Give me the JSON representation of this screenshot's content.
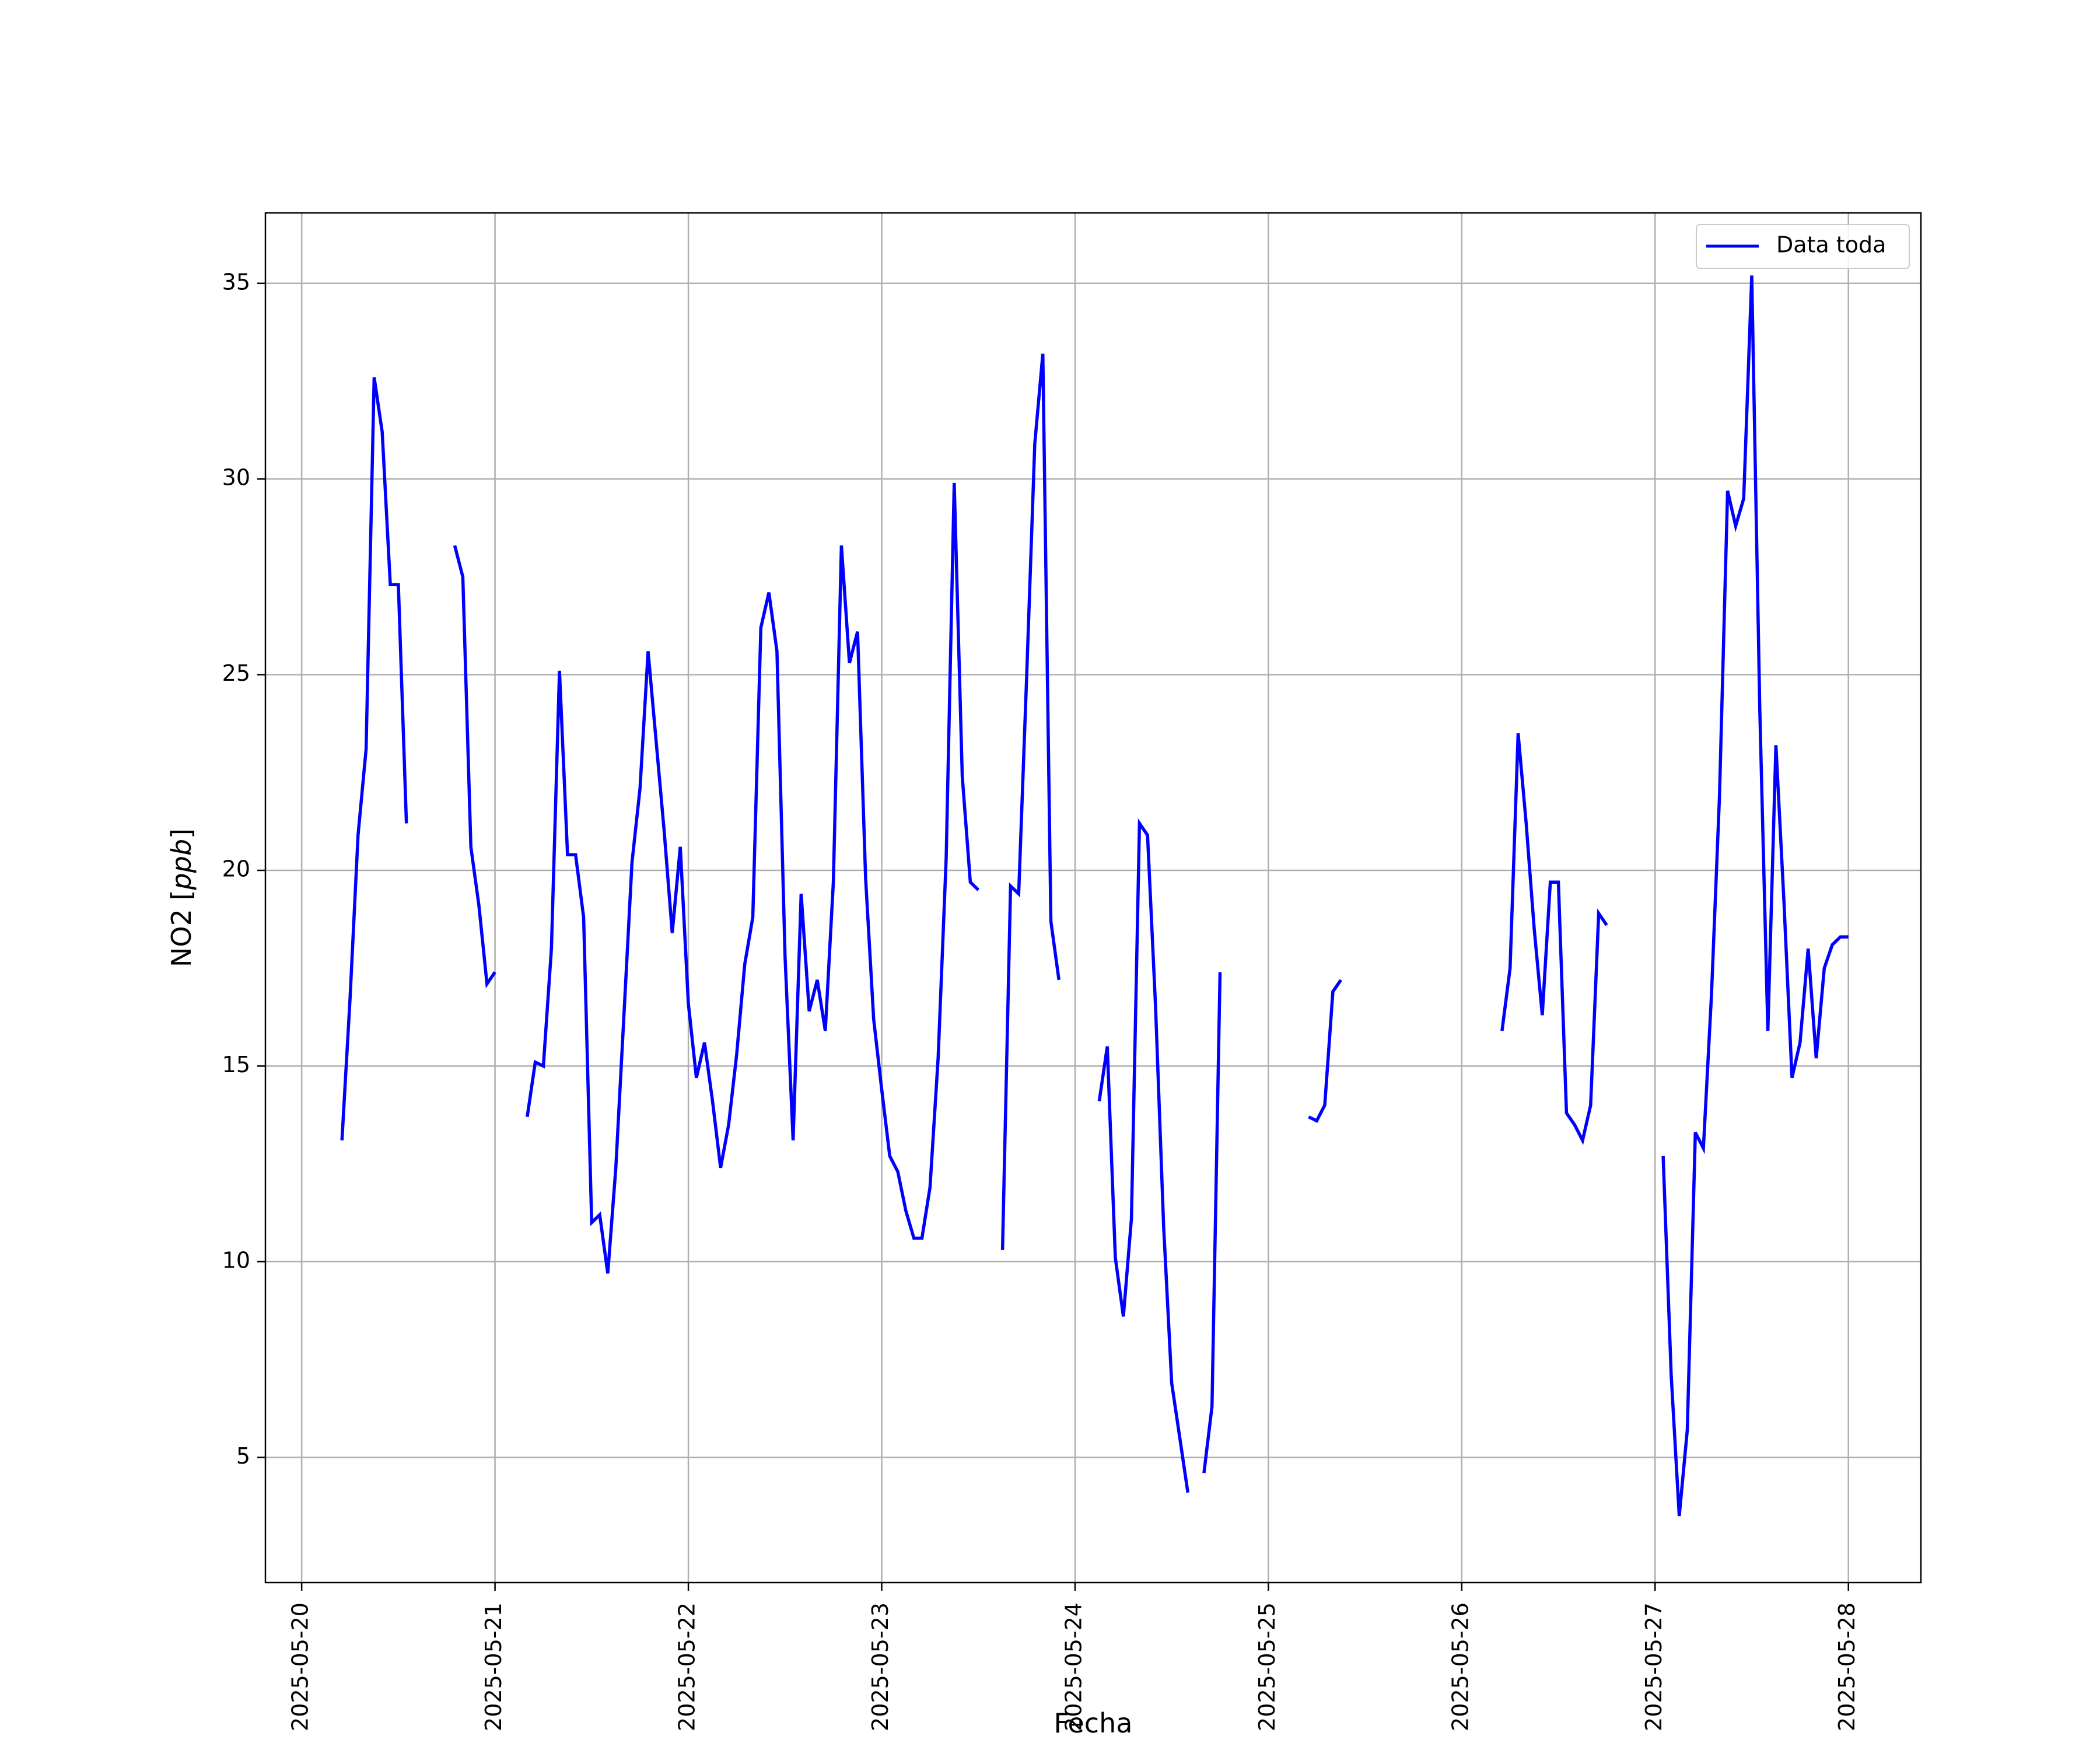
{
  "chart_data": {
    "type": "line",
    "xlabel": "Fecha",
    "ylabel_text": "NO2 [",
    "ylabel_unit": "ppb",
    "ylabel_close": "]",
    "x_ticks": [
      "2025-05-20",
      "2025-05-21",
      "2025-05-22",
      "2025-05-23",
      "2025-05-24",
      "2025-05-25",
      "2025-05-26",
      "2025-05-27",
      "2025-05-28"
    ],
    "y_ticks": [
      5,
      10,
      15,
      20,
      25,
      30,
      35
    ],
    "xlim": [
      "2025-05-19T19:30",
      "2025-05-28T09:00"
    ],
    "ylim": [
      1.8,
      36.8
    ],
    "grid": true,
    "legend_position": "upper right",
    "line_color": "#0000ff",
    "series": [
      {
        "name": "Data toda",
        "segments": [
          [
            [
              "2025-05-20T05:00",
              13.1
            ],
            [
              "2025-05-20T06:00",
              16.7
            ],
            [
              "2025-05-20T07:00",
              20.9
            ],
            [
              "2025-05-20T08:00",
              23.1
            ],
            [
              "2025-05-20T09:00",
              32.6
            ],
            [
              "2025-05-20T10:00",
              31.2
            ],
            [
              "2025-05-20T11:00",
              27.3
            ],
            [
              "2025-05-20T12:00",
              27.3
            ],
            [
              "2025-05-20T13:00",
              21.2
            ]
          ],
          [
            [
              "2025-05-20T19:00",
              28.3
            ],
            [
              "2025-05-20T20:00",
              27.5
            ],
            [
              "2025-05-20T21:00",
              20.6
            ],
            [
              "2025-05-20T22:00",
              19.1
            ],
            [
              "2025-05-20T23:00",
              17.1
            ],
            [
              "2025-05-21T00:00",
              17.4
            ]
          ],
          [
            [
              "2025-05-21T04:00",
              13.7
            ],
            [
              "2025-05-21T05:00",
              15.1
            ],
            [
              "2025-05-21T06:00",
              15.0
            ],
            [
              "2025-05-21T07:00",
              18.0
            ],
            [
              "2025-05-21T08:00",
              25.1
            ],
            [
              "2025-05-21T09:00",
              20.4
            ],
            [
              "2025-05-21T10:00",
              20.4
            ],
            [
              "2025-05-21T11:00",
              18.8
            ],
            [
              "2025-05-21T12:00",
              11.0
            ],
            [
              "2025-05-21T13:00",
              11.2
            ],
            [
              "2025-05-21T14:00",
              9.7
            ],
            [
              "2025-05-21T15:00",
              12.4
            ],
            [
              "2025-05-21T16:00",
              16.3
            ],
            [
              "2025-05-21T17:00",
              20.2
            ],
            [
              "2025-05-21T18:00",
              22.1
            ],
            [
              "2025-05-21T19:00",
              25.6
            ],
            [
              "2025-05-21T20:00",
              23.3
            ],
            [
              "2025-05-21T21:00",
              21.0
            ],
            [
              "2025-05-21T22:00",
              18.4
            ],
            [
              "2025-05-21T23:00",
              20.6
            ],
            [
              "2025-05-22T00:00",
              16.6
            ],
            [
              "2025-05-22T01:00",
              14.7
            ],
            [
              "2025-05-22T02:00",
              15.6
            ],
            [
              "2025-05-22T03:00",
              14.1
            ],
            [
              "2025-05-22T04:00",
              12.4
            ],
            [
              "2025-05-22T05:00",
              13.5
            ],
            [
              "2025-05-22T06:00",
              15.3
            ],
            [
              "2025-05-22T07:00",
              17.6
            ],
            [
              "2025-05-22T08:00",
              18.8
            ],
            [
              "2025-05-22T09:00",
              26.2
            ],
            [
              "2025-05-22T10:00",
              27.1
            ],
            [
              "2025-05-22T11:00",
              25.6
            ],
            [
              "2025-05-22T12:00",
              17.8
            ],
            [
              "2025-05-22T13:00",
              13.1
            ],
            [
              "2025-05-22T14:00",
              19.4
            ],
            [
              "2025-05-22T15:00",
              16.4
            ],
            [
              "2025-05-22T16:00",
              17.2
            ],
            [
              "2025-05-22T17:00",
              15.9
            ],
            [
              "2025-05-22T18:00",
              19.7
            ],
            [
              "2025-05-22T19:00",
              28.3
            ],
            [
              "2025-05-22T20:00",
              25.3
            ],
            [
              "2025-05-22T21:00",
              26.1
            ],
            [
              "2025-05-22T22:00",
              19.8
            ],
            [
              "2025-05-22T23:00",
              16.2
            ],
            [
              "2025-05-23T00:00",
              14.4
            ],
            [
              "2025-05-23T01:00",
              12.7
            ],
            [
              "2025-05-23T02:00",
              12.3
            ],
            [
              "2025-05-23T03:00",
              11.3
            ],
            [
              "2025-05-23T04:00",
              10.6
            ],
            [
              "2025-05-23T05:00",
              10.6
            ],
            [
              "2025-05-23T06:00",
              11.9
            ],
            [
              "2025-05-23T07:00",
              15.2
            ],
            [
              "2025-05-23T08:00",
              20.3
            ],
            [
              "2025-05-23T09:00",
              29.9
            ],
            [
              "2025-05-23T10:00",
              22.4
            ],
            [
              "2025-05-23T11:00",
              19.7
            ],
            [
              "2025-05-23T12:00",
              19.5
            ]
          ],
          [
            [
              "2025-05-23T15:00",
              10.3
            ],
            [
              "2025-05-23T16:00",
              19.6
            ],
            [
              "2025-05-23T17:00",
              19.4
            ],
            [
              "2025-05-23T18:00",
              25.0
            ],
            [
              "2025-05-23T19:00",
              30.9
            ],
            [
              "2025-05-23T20:00",
              33.2
            ],
            [
              "2025-05-23T21:00",
              18.7
            ],
            [
              "2025-05-23T22:00",
              17.2
            ]
          ],
          [
            [
              "2025-05-24T03:00",
              14.1
            ],
            [
              "2025-05-24T04:00",
              15.5
            ],
            [
              "2025-05-24T05:00",
              10.1
            ],
            [
              "2025-05-24T06:00",
              8.6
            ],
            [
              "2025-05-24T07:00",
              11.1
            ],
            [
              "2025-05-24T08:00",
              21.2
            ],
            [
              "2025-05-24T09:00",
              20.9
            ],
            [
              "2025-05-24T10:00",
              16.5
            ],
            [
              "2025-05-24T11:00",
              10.9
            ],
            [
              "2025-05-24T12:00",
              6.9
            ],
            [
              "2025-05-24T13:00",
              5.5
            ],
            [
              "2025-05-24T14:00",
              4.1
            ]
          ],
          [
            [
              "2025-05-24T16:00",
              4.6
            ],
            [
              "2025-05-24T17:00",
              6.3
            ],
            [
              "2025-05-24T18:00",
              17.4
            ]
          ],
          [
            [
              "2025-05-25T05:00",
              13.7
            ],
            [
              "2025-05-25T06:00",
              13.6
            ],
            [
              "2025-05-25T07:00",
              14.0
            ],
            [
              "2025-05-25T08:00",
              16.9
            ],
            [
              "2025-05-25T09:00",
              17.2
            ]
          ],
          [
            [
              "2025-05-26T05:00",
              15.9
            ],
            [
              "2025-05-26T06:00",
              17.5
            ],
            [
              "2025-05-26T07:00",
              23.5
            ],
            [
              "2025-05-26T08:00",
              21.2
            ],
            [
              "2025-05-26T09:00",
              18.5
            ],
            [
              "2025-05-26T10:00",
              16.3
            ],
            [
              "2025-05-26T11:00",
              19.7
            ],
            [
              "2025-05-26T12:00",
              19.7
            ],
            [
              "2025-05-26T13:00",
              13.8
            ],
            [
              "2025-05-26T14:00",
              13.5
            ],
            [
              "2025-05-26T15:00",
              13.1
            ],
            [
              "2025-05-26T16:00",
              14.0
            ],
            [
              "2025-05-26T17:00",
              18.9
            ],
            [
              "2025-05-26T18:00",
              18.6
            ]
          ],
          [
            [
              "2025-05-27T01:00",
              12.7
            ],
            [
              "2025-05-27T02:00",
              7.1
            ],
            [
              "2025-05-27T03:00",
              3.5
            ],
            [
              "2025-05-27T04:00",
              5.7
            ],
            [
              "2025-05-27T05:00",
              13.3
            ],
            [
              "2025-05-27T06:00",
              12.9
            ],
            [
              "2025-05-27T07:00",
              16.8
            ],
            [
              "2025-05-27T08:00",
              21.9
            ],
            [
              "2025-05-27T09:00",
              29.7
            ],
            [
              "2025-05-27T10:00",
              28.8
            ],
            [
              "2025-05-27T11:00",
              29.5
            ],
            [
              "2025-05-27T12:00",
              35.2
            ],
            [
              "2025-05-27T13:00",
              24.1
            ],
            [
              "2025-05-27T14:00",
              15.9
            ],
            [
              "2025-05-27T15:00",
              23.2
            ],
            [
              "2025-05-27T16:00",
              19.2
            ],
            [
              "2025-05-27T17:00",
              14.7
            ],
            [
              "2025-05-27T18:00",
              15.6
            ],
            [
              "2025-05-27T19:00",
              18.0
            ],
            [
              "2025-05-27T20:00",
              15.2
            ],
            [
              "2025-05-27T21:00",
              17.5
            ],
            [
              "2025-05-27T22:00",
              18.1
            ],
            [
              "2025-05-27T23:00",
              18.3
            ],
            [
              "2025-05-28T00:00",
              18.3
            ]
          ]
        ]
      }
    ]
  }
}
